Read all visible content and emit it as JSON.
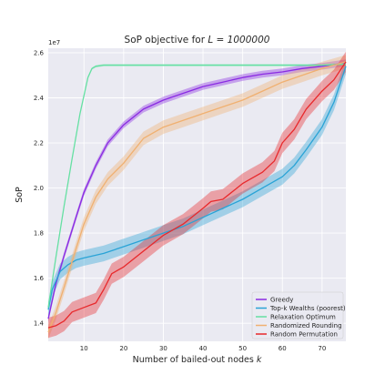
{
  "chart_data": {
    "type": "line",
    "title_prefix": "SoP objective for ",
    "title_math": "L = 1000000",
    "xlabel_prefix": "Number of bailed-out nodes ",
    "xlabel_math": "k",
    "ylabel": "SoP",
    "y_offset_label": "1e7",
    "xlim": [
      1,
      76
    ],
    "ylim": [
      1.32,
      2.62
    ],
    "x_ticks": [
      10,
      20,
      30,
      40,
      50,
      60,
      70
    ],
    "y_ticks": [
      1.4,
      1.6,
      1.8,
      2.0,
      2.2,
      2.4,
      2.6
    ],
    "y_tick_labels": [
      "1.4",
      "1.6",
      "1.8",
      "2.0",
      "2.2",
      "2.4",
      "2.6"
    ],
    "grid": true,
    "legend_position": "lower-right",
    "series": [
      {
        "name": "Greedy",
        "color": "#8a2be2",
        "band": 0.015,
        "x": [
          1,
          3,
          5,
          8,
          10,
          13,
          16,
          20,
          25,
          30,
          35,
          40,
          45,
          50,
          55,
          60,
          65,
          70,
          76
        ],
        "y": [
          1.42,
          1.58,
          1.7,
          1.87,
          1.98,
          2.1,
          2.2,
          2.28,
          2.35,
          2.39,
          2.42,
          2.45,
          2.47,
          2.49,
          2.505,
          2.515,
          2.53,
          2.54,
          2.555
        ]
      },
      {
        "name": "Top-k Wealths (poorest)",
        "color": "#29a3d6",
        "band": 0.035,
        "x": [
          1,
          2,
          4,
          6,
          8,
          10,
          15,
          20,
          25,
          30,
          35,
          40,
          45,
          50,
          55,
          60,
          63,
          66,
          70,
          73,
          76
        ],
        "y": [
          1.46,
          1.55,
          1.63,
          1.66,
          1.68,
          1.69,
          1.71,
          1.74,
          1.77,
          1.8,
          1.83,
          1.87,
          1.91,
          1.95,
          2.0,
          2.05,
          2.1,
          2.17,
          2.27,
          2.38,
          2.54
        ]
      },
      {
        "name": "Relaxation Optimum",
        "color": "#66e0a3",
        "band": 0.005,
        "x": [
          1,
          3,
          5,
          7,
          9,
          11,
          12,
          13,
          15,
          20,
          30,
          40,
          50,
          60,
          70,
          76
        ],
        "y": [
          1.47,
          1.7,
          1.92,
          2.13,
          2.33,
          2.49,
          2.53,
          2.54,
          2.545,
          2.545,
          2.545,
          2.545,
          2.545,
          2.545,
          2.545,
          2.55
        ]
      },
      {
        "name": "Randomized Rounding",
        "color": "#f0b070",
        "band": 0.03,
        "x": [
          1,
          3,
          5,
          8,
          10,
          13,
          16,
          20,
          25,
          30,
          35,
          40,
          45,
          50,
          55,
          60,
          65,
          70,
          76
        ],
        "y": [
          1.36,
          1.45,
          1.56,
          1.73,
          1.84,
          1.96,
          2.04,
          2.11,
          2.22,
          2.27,
          2.3,
          2.33,
          2.36,
          2.39,
          2.43,
          2.47,
          2.5,
          2.53,
          2.56
        ]
      },
      {
        "name": "Random Permutation",
        "color": "#e8282b",
        "band": 0.045,
        "x": [
          1,
          3,
          5,
          7,
          10,
          13,
          15,
          17,
          20,
          25,
          30,
          35,
          40,
          42,
          45,
          50,
          55,
          58,
          60,
          63,
          66,
          70,
          73,
          76
        ],
        "y": [
          1.38,
          1.39,
          1.41,
          1.45,
          1.47,
          1.49,
          1.55,
          1.62,
          1.65,
          1.72,
          1.79,
          1.84,
          1.91,
          1.94,
          1.95,
          2.02,
          2.07,
          2.12,
          2.2,
          2.26,
          2.35,
          2.43,
          2.48,
          2.56
        ]
      }
    ]
  }
}
